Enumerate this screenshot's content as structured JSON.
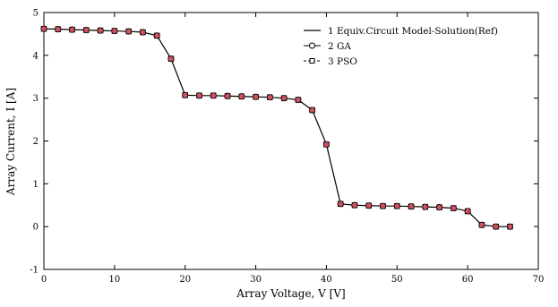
{
  "chart_data": {
    "type": "line",
    "xlabel": "Array Voltage, V [V]",
    "ylabel": "Array Current, I [A]",
    "xlim": [
      0,
      70
    ],
    "ylim": [
      -1,
      5
    ],
    "xticks": [
      "0",
      "10",
      "20",
      "30",
      "40",
      "50",
      "60",
      "70"
    ],
    "yticks": [
      "-1",
      "0",
      "1",
      "2",
      "3",
      "4",
      "5"
    ],
    "grid": false,
    "legend_position": "top-right",
    "series": [
      {
        "name": "1 Equiv.Circuit Model-Solution(Ref)",
        "style": "solid line",
        "color": "#000000",
        "x": [
          0,
          2,
          4,
          6,
          8,
          10,
          12,
          14,
          16,
          18,
          20,
          22,
          24,
          26,
          28,
          30,
          32,
          34,
          36,
          38,
          40,
          42,
          44,
          46,
          48,
          50,
          52,
          54,
          56,
          58,
          60,
          62,
          64,
          66
        ],
        "y": [
          4.62,
          4.61,
          4.6,
          4.59,
          4.58,
          4.57,
          4.56,
          4.54,
          4.46,
          3.92,
          3.07,
          3.06,
          3.06,
          3.05,
          3.04,
          3.03,
          3.02,
          3.0,
          2.96,
          2.72,
          1.92,
          0.53,
          0.5,
          0.49,
          0.48,
          0.48,
          0.47,
          0.46,
          0.45,
          0.43,
          0.36,
          0.04,
          0.0,
          0.0
        ]
      },
      {
        "name": "2 GA",
        "style": "circle markers",
        "color": "#d05060",
        "x": [
          0,
          2,
          4,
          6,
          8,
          10,
          12,
          14,
          16,
          18,
          20,
          22,
          24,
          26,
          28,
          30,
          32,
          34,
          36,
          38,
          40,
          42,
          44,
          46,
          48,
          50,
          52,
          54,
          56,
          58,
          60,
          62,
          64,
          66
        ],
        "y": [
          4.62,
          4.61,
          4.6,
          4.59,
          4.58,
          4.57,
          4.56,
          4.54,
          4.46,
          3.92,
          3.07,
          3.06,
          3.06,
          3.05,
          3.04,
          3.03,
          3.02,
          3.0,
          2.96,
          2.72,
          1.92,
          0.53,
          0.5,
          0.49,
          0.48,
          0.48,
          0.47,
          0.46,
          0.45,
          0.43,
          0.36,
          0.04,
          0.0,
          0.0
        ]
      },
      {
        "name": "3 PSO",
        "style": "square markers",
        "color": "#c04050",
        "x": [
          0,
          2,
          4,
          6,
          8,
          10,
          12,
          14,
          16,
          18,
          20,
          22,
          24,
          26,
          28,
          30,
          32,
          34,
          36,
          38,
          40,
          42,
          44,
          46,
          48,
          50,
          52,
          54,
          56,
          58,
          60,
          62,
          64,
          66
        ],
        "y": [
          4.62,
          4.61,
          4.6,
          4.59,
          4.58,
          4.57,
          4.56,
          4.54,
          4.46,
          3.92,
          3.07,
          3.06,
          3.06,
          3.05,
          3.04,
          3.03,
          3.02,
          3.0,
          2.96,
          2.72,
          1.92,
          0.53,
          0.5,
          0.49,
          0.48,
          0.48,
          0.47,
          0.46,
          0.45,
          0.43,
          0.36,
          0.04,
          0.0,
          0.0
        ]
      }
    ]
  }
}
